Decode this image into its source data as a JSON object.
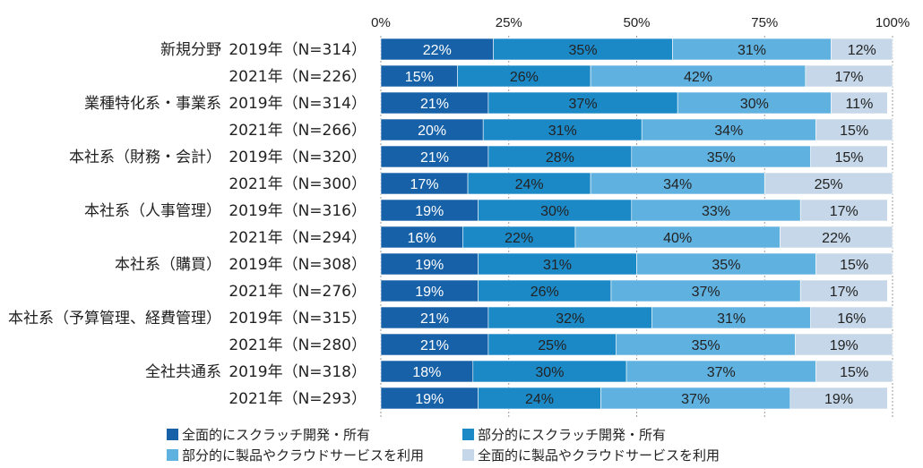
{
  "chart_data": {
    "type": "bar",
    "orientation": "horizontal",
    "stacked": true,
    "percent": true,
    "xlim": [
      0,
      100
    ],
    "x_ticks": [
      "0%",
      "25%",
      "50%",
      "75%",
      "100%"
    ],
    "groups": [
      "新規分野",
      "業種特化系・事業系",
      "本社系（財務・会計）",
      "本社系（人事管理）",
      "本社系（購買）",
      "本社系（予算管理、経費管理）",
      "全社共通系"
    ],
    "rows": [
      {
        "group": "新規分野",
        "label": "2019年（N=314）",
        "values": [
          22,
          35,
          31,
          12
        ]
      },
      {
        "group": "",
        "label": "2021年（N=226）",
        "values": [
          15,
          26,
          42,
          17
        ]
      },
      {
        "group": "業種特化系・事業系",
        "label": "2019年（N=314）",
        "values": [
          21,
          37,
          30,
          11
        ]
      },
      {
        "group": "",
        "label": "2021年（N=266）",
        "values": [
          20,
          31,
          34,
          15
        ]
      },
      {
        "group": "本社系（財務・会計）",
        "label": "2019年（N=320）",
        "values": [
          21,
          28,
          35,
          15
        ]
      },
      {
        "group": "",
        "label": "2021年（N=300）",
        "values": [
          17,
          24,
          34,
          25
        ]
      },
      {
        "group": "本社系（人事管理）",
        "label": "2019年（N=316）",
        "values": [
          19,
          30,
          33,
          17
        ]
      },
      {
        "group": "",
        "label": "2021年（N=294）",
        "values": [
          16,
          22,
          40,
          22
        ]
      },
      {
        "group": "本社系（購買）",
        "label": "2019年（N=308）",
        "values": [
          19,
          31,
          35,
          15
        ]
      },
      {
        "group": "",
        "label": "2021年（N=276）",
        "values": [
          19,
          26,
          37,
          17
        ]
      },
      {
        "group": "本社系（予算管理、経費管理）",
        "label": "2019年（N=315）",
        "values": [
          21,
          32,
          31,
          16
        ]
      },
      {
        "group": "",
        "label": "2021年（N=280）",
        "values": [
          21,
          25,
          35,
          19
        ]
      },
      {
        "group": "全社共通系",
        "label": "2019年（N=318）",
        "values": [
          18,
          30,
          37,
          15
        ]
      },
      {
        "group": "",
        "label": "2021年（N=293）",
        "values": [
          19,
          24,
          37,
          19
        ]
      }
    ],
    "series": [
      {
        "name": "全面的にスクラッチ開発・所有",
        "color": "#1761a8"
      },
      {
        "name": "部分的にスクラッチ開発・所有",
        "color": "#1c89c7"
      },
      {
        "name": "部分的に製品やクラウドサービスを利用",
        "color": "#5fb1e0"
      },
      {
        "name": "全面的に製品やクラウドサービスを利用",
        "color": "#c5d7e8"
      }
    ]
  }
}
